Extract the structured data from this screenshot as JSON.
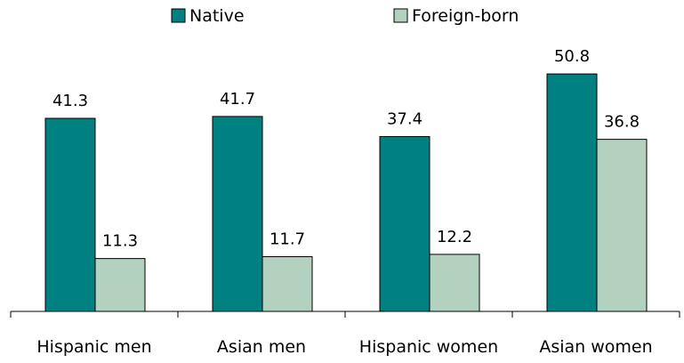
{
  "chart_data": {
    "type": "bar",
    "title": "",
    "xlabel": "",
    "ylabel": "",
    "categories": [
      "Hispanic men",
      "Asian men",
      "Hispanic women",
      "Asian women"
    ],
    "series": [
      {
        "name": "Native",
        "values": [
          41.3,
          41.7,
          37.4,
          50.8
        ],
        "color": "#008080"
      },
      {
        "name": "Foreign-born",
        "values": [
          11.3,
          11.7,
          12.2,
          36.8
        ],
        "color": "#b3d1bf"
      }
    ],
    "ylim": [
      0,
      55
    ],
    "grid": false,
    "legend": "top-center",
    "data_labels": true
  }
}
